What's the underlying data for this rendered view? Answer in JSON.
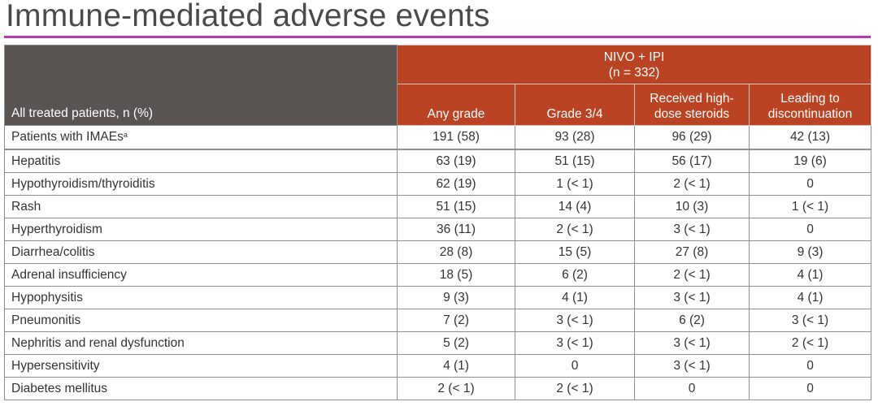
{
  "title": "Immune-mediated adverse events",
  "colors": {
    "accent_rule": "#b737b5",
    "header_dark": "#595352",
    "header_orange": "#b94322"
  },
  "table": {
    "row_header_label": "All treated patients, n (%)",
    "group_header": {
      "line1": "NIVO + IPI",
      "line2": "(n = 332)"
    },
    "columns": [
      "Any grade",
      "Grade 3/4",
      "Received high-dose steroids",
      "Leading to discontinuation"
    ],
    "columns_lines": [
      [
        "Any grade"
      ],
      [
        "Grade 3/4"
      ],
      [
        "Received high-",
        "dose steroids"
      ],
      [
        "Leading to",
        "discontinuation"
      ]
    ],
    "summary_row": {
      "label": "Patients with IMAEs",
      "footnote": "a",
      "values": [
        "191 (58)",
        "93 (28)",
        "96 (29)",
        "42 (13)"
      ]
    },
    "rows": [
      {
        "label": "Hepatitis",
        "values": [
          "63 (19)",
          "51 (15)",
          "56 (17)",
          "19 (6)"
        ]
      },
      {
        "label": "Hypothyroidism/thyroiditis",
        "values": [
          "62 (19)",
          "1 (< 1)",
          "2 (< 1)",
          "0"
        ]
      },
      {
        "label": "Rash",
        "values": [
          "51 (15)",
          "14 (4)",
          "10 (3)",
          "1 (< 1)"
        ]
      },
      {
        "label": "Hyperthyroidism",
        "values": [
          "36 (11)",
          "2 (< 1)",
          "3 (< 1)",
          "0"
        ]
      },
      {
        "label": "Diarrhea/colitis",
        "values": [
          "28 (8)",
          "15 (5)",
          "27 (8)",
          "9 (3)"
        ]
      },
      {
        "label": "Adrenal insufficiency",
        "values": [
          "18 (5)",
          "6 (2)",
          "2 (< 1)",
          "4 (1)"
        ]
      },
      {
        "label": "Hypophysitis",
        "values": [
          "9 (3)",
          "4 (1)",
          "3 (< 1)",
          "4 (1)"
        ]
      },
      {
        "label": "Pneumonitis",
        "values": [
          "7 (2)",
          "3 (< 1)",
          "6 (2)",
          "3 (< 1)"
        ]
      },
      {
        "label": "Nephritis and renal dysfunction",
        "values": [
          "5 (2)",
          "3 (< 1)",
          "3 (< 1)",
          "2 (< 1)"
        ]
      },
      {
        "label": "Hypersensitivity",
        "values": [
          "4 (1)",
          "0",
          "3 (< 1)",
          "0"
        ]
      },
      {
        "label": "Diabetes mellitus",
        "values": [
          "2 (< 1)",
          "2 (< 1)",
          "0",
          "0"
        ]
      }
    ]
  }
}
